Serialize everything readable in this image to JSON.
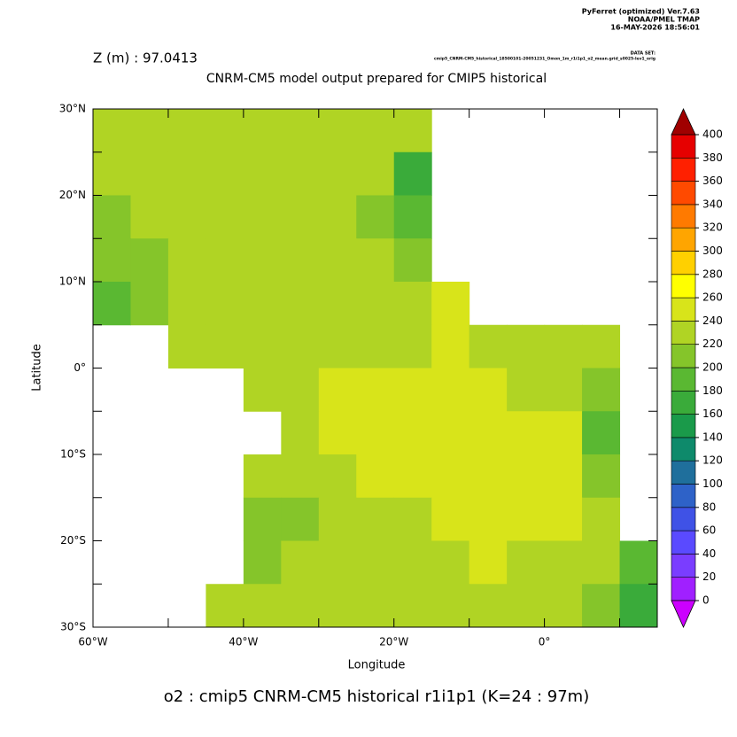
{
  "chart_data": {
    "type": "heatmap",
    "header": [
      "PyFerret (optimized) Ver.7.63",
      "NOAA/PMEL TMAP",
      "16-MAY-2026 18:56:01"
    ],
    "dataset_label": "DATA SET:",
    "dataset": "cmip5_CNRM-CM5_historical_18500101-20051231_Omon_1m_r1i1p1_o2_mean.grid_s0025-lev1_orig",
    "subtitle": "Z (m) : 97.0413",
    "title": "CNRM-CM5 model output prepared for CMIP5 historical",
    "x_label": "Longitude",
    "y_label": "Latitude",
    "footer": "o2 : cmip5 CNRM-CM5 historical r1i1p1   (K=24 : 97m)",
    "xlim": [
      -60,
      15
    ],
    "ylim": [
      -30,
      30
    ],
    "xticks": [
      {
        "value": -60,
        "label": "60°W"
      },
      {
        "value": -40,
        "label": "40°W"
      },
      {
        "value": -20,
        "label": "20°W"
      },
      {
        "value": 0,
        "label": "0°"
      }
    ],
    "xticks_minor": [
      -50,
      -30,
      -10,
      10
    ],
    "yticks": [
      {
        "value": 30,
        "label": "30°N"
      },
      {
        "value": 20,
        "label": "20°N"
      },
      {
        "value": 10,
        "label": "10°N"
      },
      {
        "value": 0,
        "label": "0°"
      },
      {
        "value": -10,
        "label": "10°S"
      },
      {
        "value": -20,
        "label": "20°S"
      },
      {
        "value": -30,
        "label": "30°S"
      }
    ],
    "yticks_minor": [
      25,
      15,
      5,
      -5,
      -15,
      -25
    ],
    "x": [
      -57.5,
      -52.5,
      -47.5,
      -42.5,
      -37.5,
      -32.5,
      -27.5,
      -22.5,
      -17.5,
      -12.5,
      -7.5,
      -2.5,
      2.5,
      7.5,
      12.5
    ],
    "y": [
      27.5,
      22.5,
      17.5,
      12.5,
      7.5,
      2.5,
      -2.5,
      -7.5,
      -12.5,
      -17.5,
      -22.5,
      -27.5
    ],
    "cell_size": 5,
    "values": [
      [
        225,
        225,
        225,
        225,
        225,
        225,
        230,
        230,
        225,
        null,
        null,
        null,
        null,
        null,
        null
      ],
      [
        220,
        220,
        220,
        225,
        225,
        225,
        225,
        220,
        170,
        null,
        null,
        null,
        null,
        null,
        null
      ],
      [
        215,
        220,
        225,
        230,
        230,
        225,
        225,
        215,
        190,
        null,
        null,
        null,
        null,
        null,
        null
      ],
      [
        210,
        215,
        230,
        235,
        230,
        225,
        220,
        220,
        215,
        null,
        null,
        null,
        null,
        null,
        null
      ],
      [
        195,
        205,
        220,
        230,
        235,
        230,
        225,
        230,
        235,
        240,
        null,
        null,
        null,
        null,
        null
      ],
      [
        null,
        null,
        225,
        230,
        235,
        235,
        235,
        235,
        235,
        240,
        235,
        230,
        230,
        225,
        null
      ],
      [
        null,
        null,
        null,
        null,
        230,
        235,
        240,
        240,
        240,
        245,
        240,
        235,
        230,
        210,
        null
      ],
      [
        null,
        null,
        null,
        null,
        null,
        235,
        240,
        245,
        245,
        250,
        255,
        255,
        245,
        190,
        null
      ],
      [
        null,
        null,
        null,
        null,
        220,
        225,
        230,
        240,
        245,
        250,
        255,
        255,
        245,
        215,
        null
      ],
      [
        null,
        null,
        null,
        null,
        215,
        215,
        220,
        225,
        235,
        240,
        245,
        245,
        240,
        225,
        null
      ],
      [
        null,
        null,
        null,
        null,
        215,
        220,
        225,
        230,
        235,
        235,
        240,
        235,
        230,
        220,
        185
      ],
      [
        null,
        null,
        null,
        225,
        230,
        235,
        235,
        235,
        235,
        235,
        235,
        230,
        225,
        215,
        170
      ]
    ],
    "colorbar": {
      "ticks": [
        0,
        20,
        40,
        60,
        80,
        100,
        120,
        140,
        160,
        180,
        200,
        220,
        240,
        260,
        280,
        300,
        320,
        340,
        360,
        380,
        400
      ],
      "colors": [
        "#a020ff",
        "#7a3dff",
        "#5a4aff",
        "#3f52e6",
        "#2e62c8",
        "#1f6f9c",
        "#0e8a6b",
        "#1a9a4a",
        "#3aab3a",
        "#5ab832",
        "#85c52a",
        "#b0d424",
        "#d8e41a",
        "#ffff00",
        "#ffd000",
        "#ffa500",
        "#ff7a00",
        "#ff4a00",
        "#ff2000",
        "#e60000"
      ],
      "under_color": "#cc00ff",
      "over_color": "#a00000"
    }
  }
}
